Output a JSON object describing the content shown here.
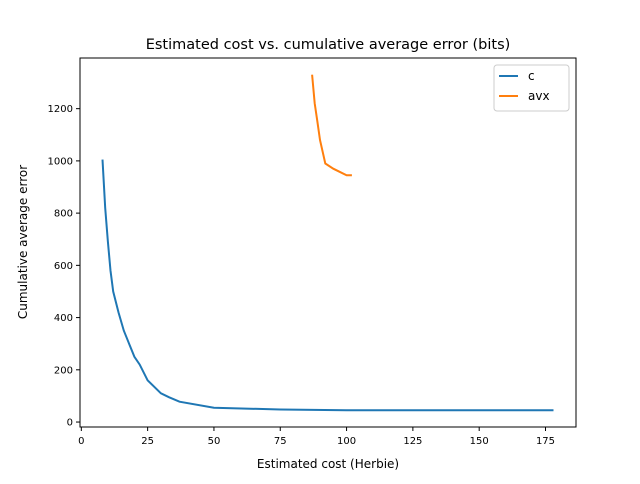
{
  "chart_data": {
    "type": "line",
    "title": "Estimated cost vs. cumulative average error (bits)",
    "xlabel": "Estimated cost (Herbie)",
    "ylabel": "Cumulative average error",
    "xlim": [
      -0.5,
      186.5
    ],
    "ylim": [
      -19,
      1394
    ],
    "xticks": [
      0,
      25,
      50,
      75,
      100,
      125,
      150,
      175
    ],
    "yticks": [
      0,
      200,
      400,
      600,
      800,
      1000,
      1200
    ],
    "grid": false,
    "legend_position": "top-right",
    "series": [
      {
        "name": "c",
        "color": "#1f77b4",
        "x": [
          8,
          9,
          10,
          11,
          12,
          14,
          16,
          18,
          20,
          22,
          25,
          30,
          33,
          37,
          50,
          75,
          100,
          125,
          178
        ],
        "y": [
          1005,
          820,
          690,
          580,
          500,
          420,
          350,
          300,
          250,
          220,
          160,
          110,
          95,
          78,
          55,
          48,
          45,
          45,
          45
        ]
      },
      {
        "name": "avx",
        "color": "#ff7f0e",
        "x": [
          87,
          88,
          89,
          90,
          92,
          95,
          97,
          100,
          102
        ],
        "y": [
          1330,
          1220,
          1150,
          1080,
          990,
          970,
          960,
          945,
          945
        ]
      }
    ]
  }
}
